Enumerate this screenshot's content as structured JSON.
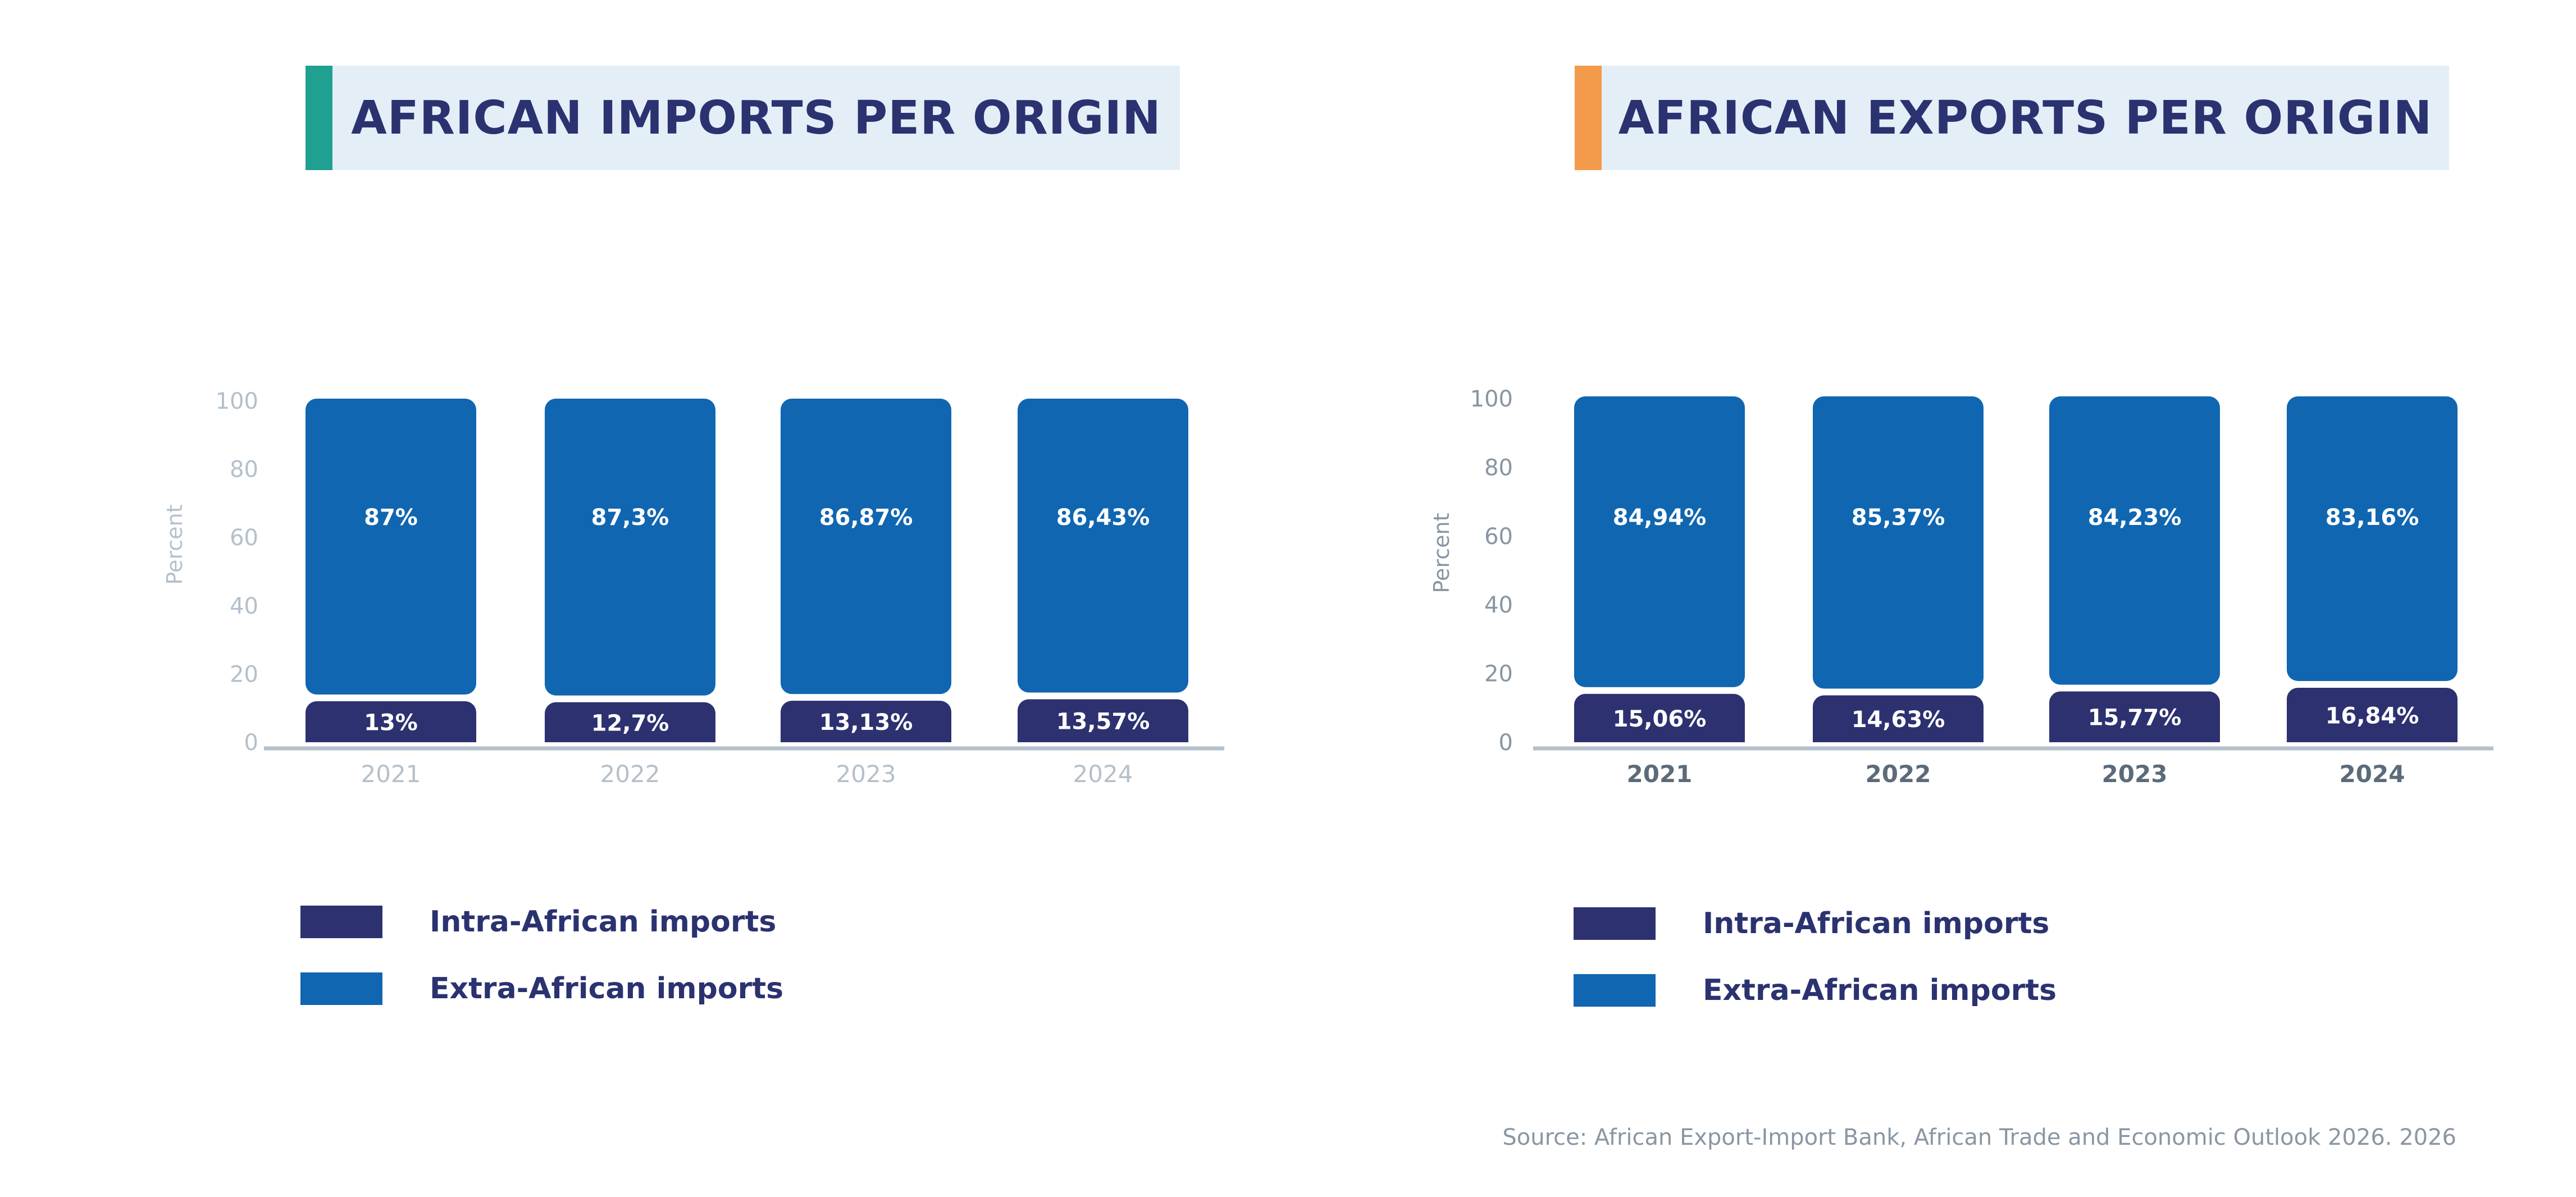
{
  "colors": {
    "intra": "#2d3170",
    "extra": "#1066b0",
    "axis": "#b4c0cb",
    "tick_left": "#b4c0cb",
    "tick_right": "#8796a3",
    "year_left": "#b4c0cb",
    "year_right": "#5c6b79",
    "accent_left": "#1fa090",
    "accent_right": "#f39a4b"
  },
  "chart_data": [
    {
      "type": "bar",
      "stacked": true,
      "title": "AFRICAN IMPORTS PER ORIGIN",
      "ylabel": "Percent",
      "ylim": [
        0,
        100
      ],
      "yticks": [
        "0",
        "20",
        "40",
        "60",
        "80",
        "100"
      ],
      "categories": [
        "2021",
        "2022",
        "2023",
        "2024"
      ],
      "series": [
        {
          "name": "Intra-African imports",
          "values": [
            13,
            12.7,
            13.13,
            13.57
          ],
          "labels": [
            "13%",
            "12,7%",
            "13,13%",
            "13,57%"
          ]
        },
        {
          "name": "Extra-African imports",
          "values": [
            87,
            87.3,
            86.87,
            86.43
          ],
          "labels": [
            "87%",
            "87,3%",
            "86,87%",
            "86,43%"
          ]
        }
      ],
      "legend": [
        "Intra-African imports",
        "Extra-African imports"
      ],
      "legend_position": "bottom-left",
      "grid": false
    },
    {
      "type": "bar",
      "stacked": true,
      "title": "AFRICAN EXPORTS PER ORIGIN",
      "ylabel": "Percent",
      "ylim": [
        0,
        100
      ],
      "yticks": [
        "0",
        "20",
        "40",
        "60",
        "80",
        "100"
      ],
      "categories": [
        "2021",
        "2022",
        "2023",
        "2024"
      ],
      "series": [
        {
          "name": "Intra-African imports",
          "values": [
            15.06,
            14.63,
            15.77,
            16.84
          ],
          "labels": [
            "15,06%",
            "14,63%",
            "15,77%",
            "16,84%"
          ]
        },
        {
          "name": "Extra-African imports",
          "values": [
            84.94,
            85.37,
            84.23,
            83.16
          ],
          "labels": [
            "84,94%",
            "85,37%",
            "84,23%",
            "83,16%"
          ]
        }
      ],
      "legend": [
        "Intra-African imports",
        "Extra-African imports"
      ],
      "legend_position": "bottom-left",
      "grid": false
    }
  ],
  "source": "Source: African Export-Import Bank, African Trade and Economic Outlook 2026. 2026"
}
